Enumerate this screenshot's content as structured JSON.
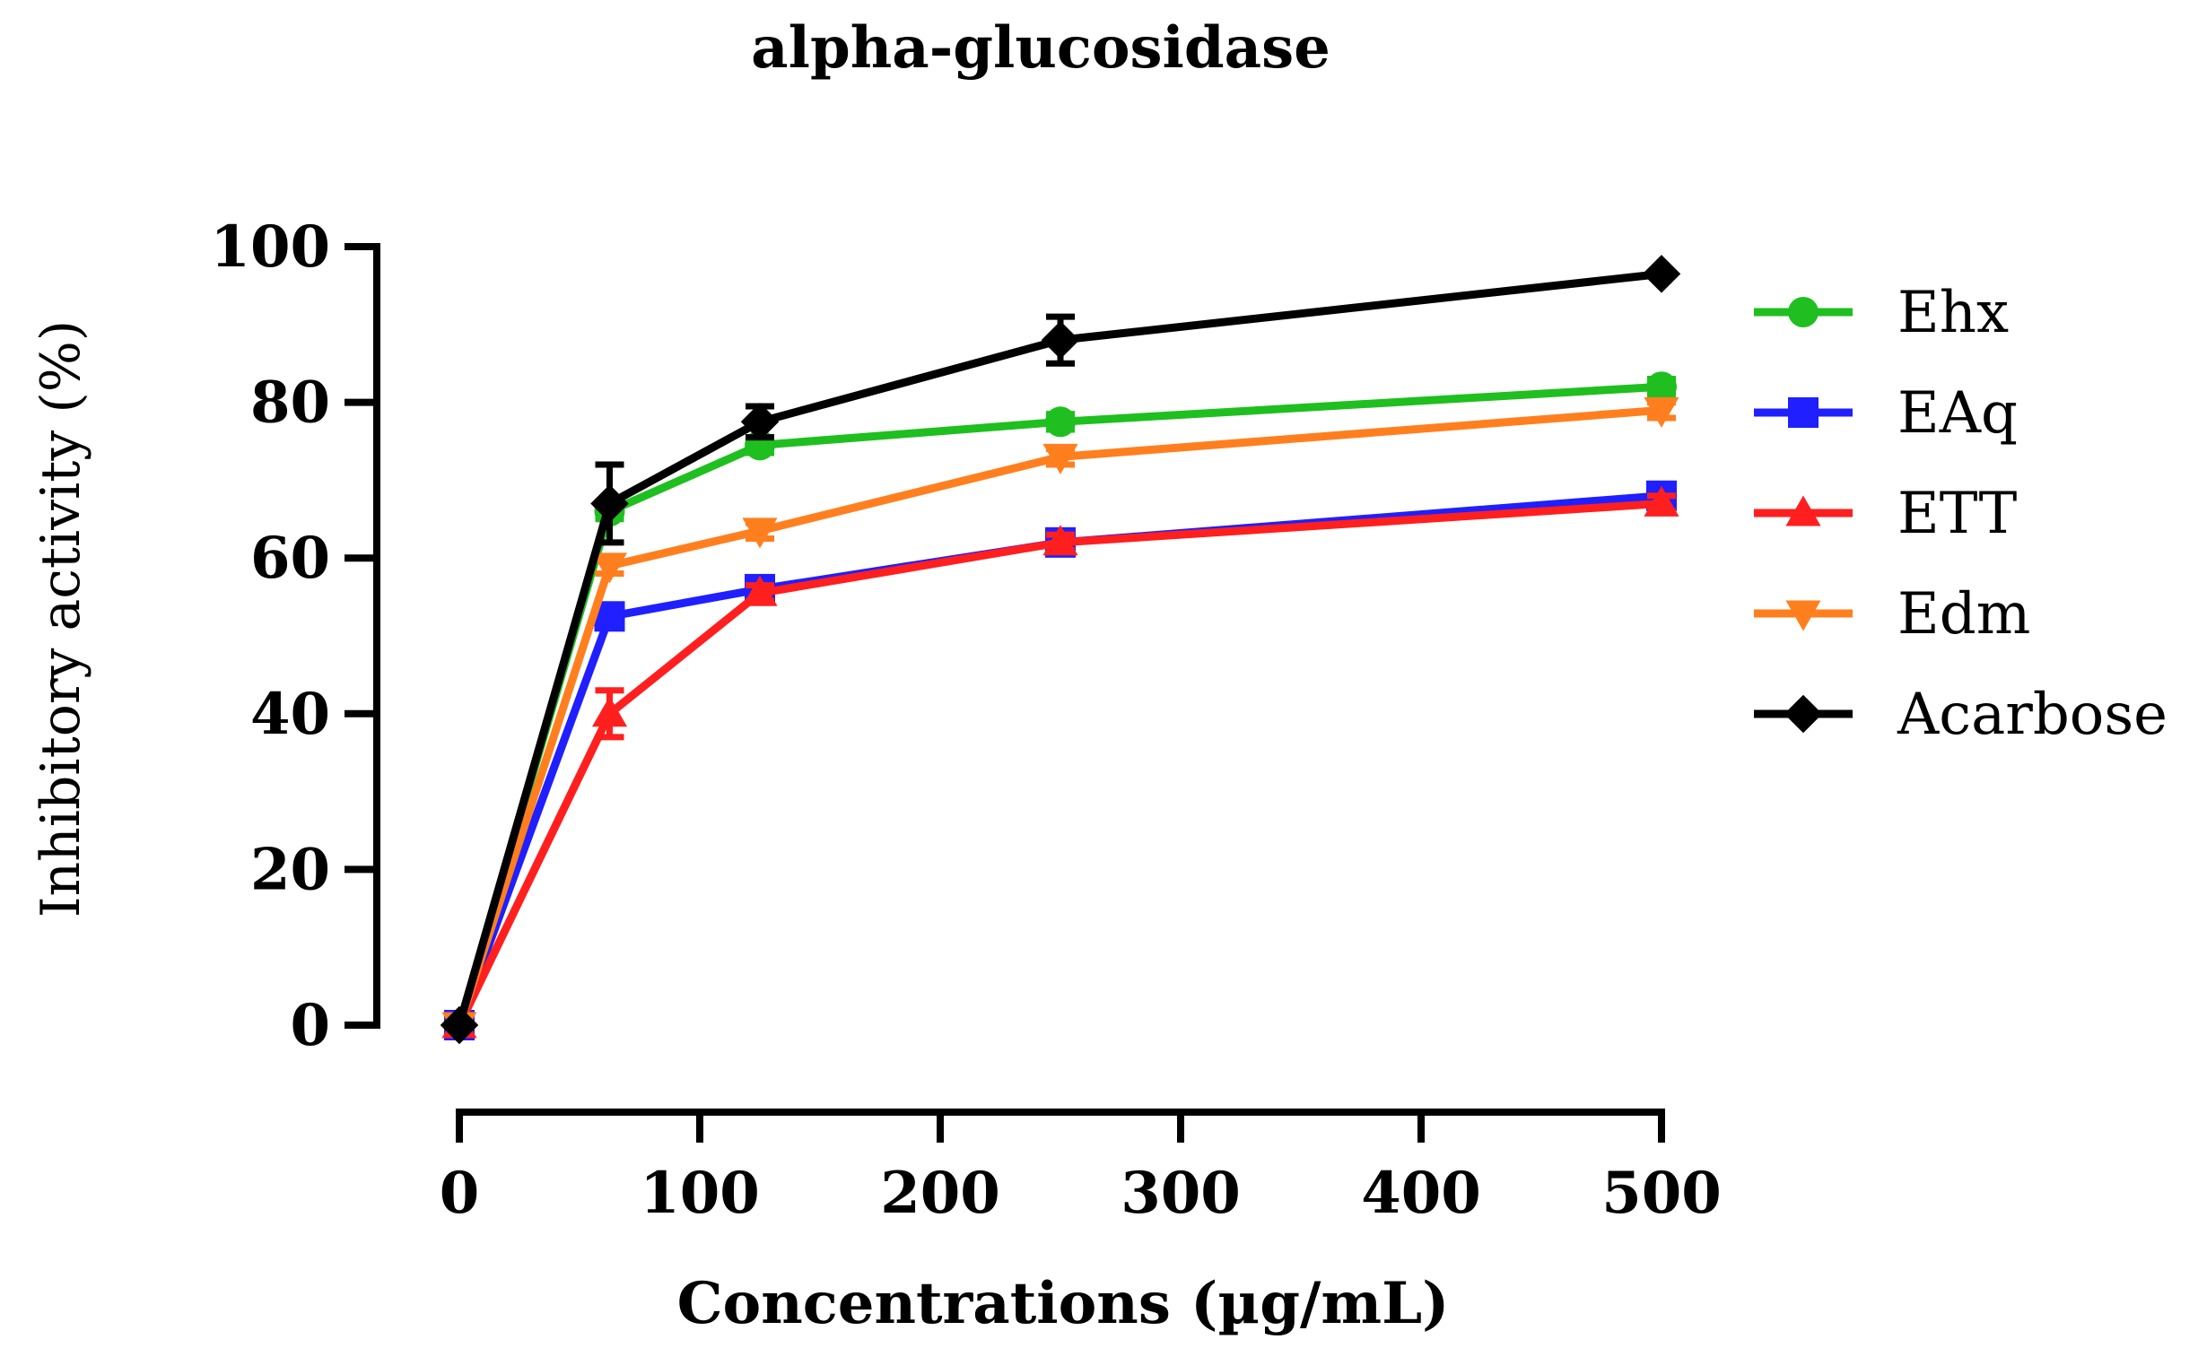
{
  "chart_data": {
    "type": "line",
    "title": "alpha-glucosidase",
    "xlabel": "Concentrations (µg/mL)",
    "ylabel": "Inhibitory activity (%)",
    "xlim": [
      0,
      500
    ],
    "ylim": [
      0,
      100
    ],
    "x_ticks": [
      0,
      100,
      200,
      300,
      400,
      500
    ],
    "y_ticks": [
      0,
      20,
      40,
      60,
      80,
      100
    ],
    "x_tick_labels": [
      "0",
      "100",
      "200",
      "300",
      "400",
      "500"
    ],
    "y_tick_labels": [
      "0",
      "20",
      "40",
      "60",
      "80",
      "100"
    ],
    "grid": false,
    "legend_position": "right",
    "x": [
      0,
      62.5,
      125,
      250,
      500
    ],
    "series": [
      {
        "name": "Ehx",
        "color": "#1fbf1f",
        "marker": "circle",
        "values": [
          0,
          66,
          74.5,
          77.5,
          82
        ],
        "errors": [
          0,
          1,
          1,
          1,
          1
        ]
      },
      {
        "name": "EAq",
        "color": "#1f1fff",
        "marker": "square",
        "values": [
          0,
          52.5,
          56,
          62,
          68
        ],
        "errors": [
          0,
          1,
          1,
          1,
          1
        ]
      },
      {
        "name": "ETT",
        "color": "#ff1f1f",
        "marker": "triangle-up",
        "values": [
          0,
          40,
          55.5,
          62,
          67
        ],
        "errors": [
          0,
          3,
          1,
          1,
          1
        ]
      },
      {
        "name": "Edm",
        "color": "#ff7f1f",
        "marker": "triangle-down",
        "values": [
          0,
          59,
          63.5,
          73,
          79
        ],
        "errors": [
          0,
          1,
          1,
          1,
          1
        ]
      },
      {
        "name": "Acarbose",
        "color": "#000000",
        "marker": "diamond",
        "values": [
          0,
          67,
          77.5,
          88,
          96.5
        ],
        "errors": [
          0,
          5,
          2,
          3,
          0.5
        ]
      }
    ]
  }
}
